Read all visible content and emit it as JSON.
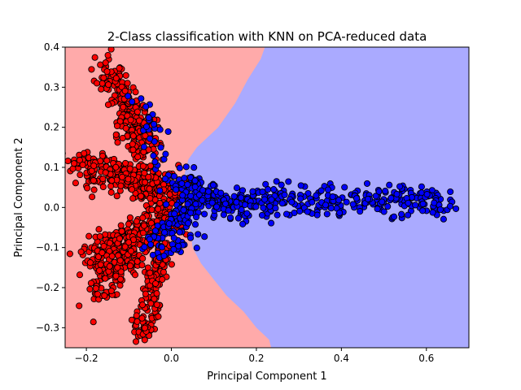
{
  "chart_data": {
    "type": "scatter",
    "title": "2-Class classification with KNN on PCA-reduced data",
    "xlabel": "Principal Component 1",
    "ylabel": "Principal Component 2",
    "xlim": [
      -0.25,
      0.7
    ],
    "ylim": [
      -0.35,
      0.4
    ],
    "x_ticks": [
      {
        "value": -0.2,
        "label": "−0.2"
      },
      {
        "value": 0.0,
        "label": "0.0"
      },
      {
        "value": 0.2,
        "label": "0.2"
      },
      {
        "value": 0.4,
        "label": "0.4"
      },
      {
        "value": 0.6,
        "label": "0.6"
      }
    ],
    "y_ticks": [
      {
        "value": -0.3,
        "label": "−0.3"
      },
      {
        "value": -0.2,
        "label": "−0.2"
      },
      {
        "value": -0.1,
        "label": "−0.1"
      },
      {
        "value": 0.0,
        "label": "0.0"
      },
      {
        "value": 0.1,
        "label": "0.1"
      },
      {
        "value": 0.2,
        "label": "0.2"
      },
      {
        "value": 0.3,
        "label": "0.3"
      },
      {
        "value": 0.4,
        "label": "0.4"
      }
    ],
    "grid": false,
    "legend": "none",
    "colors": {
      "class_0_region": "#ffaaaa",
      "class_1_region": "#aaaaff",
      "class_0_point": "#ff0000",
      "class_1_point": "#0000ff",
      "point_edge": "#000000"
    },
    "decision_boundary": [
      [
        0.22,
        0.4
      ],
      [
        0.21,
        0.37
      ],
      [
        0.18,
        0.32
      ],
      [
        0.15,
        0.26
      ],
      [
        0.11,
        0.2
      ],
      [
        0.06,
        0.15
      ],
      [
        0.04,
        0.12
      ],
      [
        0.03,
        0.08
      ],
      [
        0.035,
        0.03
      ],
      [
        0.04,
        -0.02
      ],
      [
        0.045,
        -0.06
      ],
      [
        0.05,
        -0.1
      ],
      [
        0.07,
        -0.14
      ],
      [
        0.1,
        -0.18
      ],
      [
        0.13,
        -0.22
      ],
      [
        0.17,
        -0.26
      ],
      [
        0.2,
        -0.3
      ],
      [
        0.23,
        -0.33
      ],
      [
        0.235,
        -0.35
      ]
    ],
    "series": [
      {
        "class": 0,
        "clusters": [
          {
            "from": [
              -0.16,
              0.36
            ],
            "to": [
              -0.04,
              0.15
            ],
            "spread": 0.018,
            "count": 180
          },
          {
            "from": [
              -0.22,
              0.11
            ],
            "to": [
              0.02,
              0.03
            ],
            "spread": 0.022,
            "count": 320
          },
          {
            "from": [
              -0.2,
              -0.13
            ],
            "to": [
              0.0,
              -0.02
            ],
            "spread": 0.022,
            "count": 260
          },
          {
            "from": [
              -0.17,
              -0.22
            ],
            "to": [
              -0.08,
              -0.08
            ],
            "spread": 0.018,
            "count": 140
          },
          {
            "from": [
              -0.07,
              -0.32
            ],
            "to": [
              -0.02,
              -0.1
            ],
            "spread": 0.014,
            "count": 160
          },
          {
            "from": [
              -0.11,
              0.22
            ],
            "to": [
              -0.04,
              0.06
            ],
            "spread": 0.015,
            "count": 80
          }
        ]
      },
      {
        "class": 1,
        "clusters": [
          {
            "from": [
              0.02,
              0.01
            ],
            "to": [
              0.65,
              0.02
            ],
            "spread": 0.02,
            "count": 380
          },
          {
            "from": [
              0.0,
              0.07
            ],
            "to": [
              0.12,
              0.02
            ],
            "spread": 0.018,
            "count": 90
          },
          {
            "from": [
              -0.03,
              -0.06
            ],
            "to": [
              0.06,
              -0.01
            ],
            "spread": 0.016,
            "count": 70
          },
          {
            "from": [
              -0.08,
              0.28
            ],
            "to": [
              -0.03,
              0.12
            ],
            "spread": 0.012,
            "count": 25
          },
          {
            "from": [
              -0.05,
              -0.12
            ],
            "to": [
              0.07,
              -0.07
            ],
            "spread": 0.014,
            "count": 30
          }
        ]
      }
    ]
  }
}
